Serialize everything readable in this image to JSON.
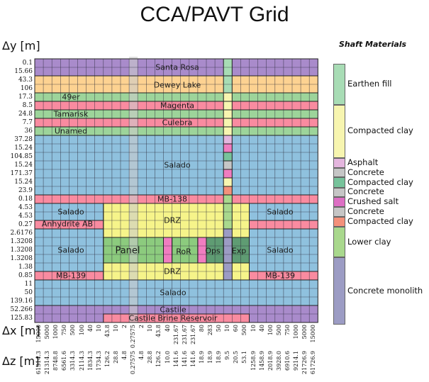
{
  "title": "CCA/PAVT Grid",
  "axes": {
    "dy_label": "Δy [m]",
    "dx_label": "Δx [m]",
    "dz_label": "Δz [m]"
  },
  "colors": {
    "santa_rosa": "#a98bcb",
    "dewey_lake": "#fdd291",
    "green_unit": "#9dd49a",
    "red_unit": "#f98ba0",
    "salado": "#8fc1de",
    "drz": "#f6f48a",
    "panel": "#8ccb7e",
    "ops_exp": "#5f9c73",
    "castile": "#a98bcb",
    "brine": "#f98ba0",
    "panel_shaft": "#cccccc",
    "pink_pillar": "#f07dc0",
    "grid_line": "#2b2b3a"
  },
  "chart_data": {
    "type": "table",
    "title": "CCA/PAVT Grid",
    "row_dy_m": [
      "0.1",
      "15.66",
      "43.3",
      "106",
      "17.3",
      "8.5",
      "24.8",
      "7.7",
      "36",
      "37.28",
      "15.24",
      "104.85",
      "15.24",
      "171.37",
      "15.24",
      "23.9",
      "0.18",
      "4.53",
      "4.53",
      "0.27",
      "2.6176",
      "1.3208",
      "1.3208",
      "1.3208",
      "1.38",
      "0.85",
      "11",
      "50",
      "139.16",
      "52.266",
      "125.83"
    ],
    "col_dx_m": [
      "15000",
      "5000",
      "1000",
      "750",
      "500",
      "100",
      "40",
      "10",
      "43.8",
      "10",
      "2",
      "0.27575",
      "2",
      "10",
      "43.8",
      "40",
      "231.67",
      "231.67",
      "231.67",
      "80",
      "283",
      "50",
      "10",
      "60",
      "500",
      "10",
      "40",
      "100",
      "500",
      "750",
      "1000",
      "5000",
      "15000"
    ],
    "col_dz_m": [
      "61314.3",
      "21314.3",
      "8748.8",
      "6561.6",
      "3314.3",
      "2114.3",
      "1834.3",
      "1734.3",
      "126.2",
      "28.8",
      "4.8",
      "0.27575",
      "4.8",
      "28.8",
      "126.2",
      "10.0",
      "141.6",
      "141.6",
      "141.6",
      "18.9",
      "18.9",
      "18.9",
      "9.5",
      "20.5",
      "53.1",
      "1258.9",
      "1458.9",
      "2018.9",
      "3928.0",
      "6910.6",
      "9214.1",
      "21726.9",
      "61726.9"
    ],
    "regions": [
      {
        "name": "Santa Rosa",
        "rows": [
          0,
          1
        ],
        "cols": [
          0,
          32
        ],
        "color_key": "santa_rosa"
      },
      {
        "name": "Dewey Lake",
        "rows": [
          2,
          3
        ],
        "cols": [
          0,
          32
        ],
        "color_key": "dewey_lake"
      },
      {
        "name": "49er",
        "rows": [
          4,
          4
        ],
        "cols": [
          0,
          32
        ],
        "color_key": "green_unit"
      },
      {
        "name": "Magenta",
        "rows": [
          5,
          5
        ],
        "cols": [
          0,
          32
        ],
        "color_key": "red_unit"
      },
      {
        "name": "Tamarisk",
        "rows": [
          6,
          6
        ],
        "cols": [
          0,
          32
        ],
        "color_key": "green_unit"
      },
      {
        "name": "Culebra",
        "rows": [
          7,
          7
        ],
        "cols": [
          0,
          32
        ],
        "color_key": "red_unit"
      },
      {
        "name": "Unamed",
        "rows": [
          8,
          8
        ],
        "cols": [
          0,
          32
        ],
        "color_key": "green_unit"
      },
      {
        "name": "Salado",
        "rows": [
          9,
          15
        ],
        "cols": [
          0,
          32
        ],
        "color_key": "salado"
      },
      {
        "name": "MB-138",
        "rows": [
          16,
          16
        ],
        "cols": [
          0,
          32
        ],
        "color_key": "red_unit"
      },
      {
        "name": "Salado",
        "rows": [
          17,
          18
        ],
        "cols": [
          0,
          7
        ],
        "color_key": "salado"
      },
      {
        "name": "Anhydrite AB",
        "rows": [
          19,
          19
        ],
        "cols": [
          0,
          7
        ],
        "color_key": "red_unit"
      },
      {
        "name": "Salado",
        "rows": [
          20,
          24
        ],
        "cols": [
          0,
          7
        ],
        "color_key": "salado"
      },
      {
        "name": "MB-139",
        "rows": [
          25,
          25
        ],
        "cols": [
          0,
          7
        ],
        "color_key": "red_unit"
      },
      {
        "name": "Salado",
        "rows": [
          17,
          18
        ],
        "cols": [
          25,
          32
        ],
        "color_key": "salado"
      },
      {
        "name": "",
        "rows": [
          19,
          19
        ],
        "cols": [
          25,
          32
        ],
        "color_key": "red_unit"
      },
      {
        "name": "Salado",
        "rows": [
          20,
          24
        ],
        "cols": [
          25,
          32
        ],
        "color_key": "salado"
      },
      {
        "name": "MB-139",
        "rows": [
          25,
          25
        ],
        "cols": [
          25,
          32
        ],
        "color_key": "red_unit"
      },
      {
        "name": "DRZ",
        "rows": [
          17,
          20
        ],
        "cols": [
          8,
          24
        ],
        "color_key": "drz"
      },
      {
        "name": "Panel",
        "rows": [
          21,
          23
        ],
        "cols": [
          8,
          14
        ],
        "color_key": "panel"
      },
      {
        "name": "",
        "rows": [
          21,
          23
        ],
        "cols": [
          15,
          15
        ],
        "color_key": "pink_pillar"
      },
      {
        "name": "RoR",
        "rows": [
          21,
          23
        ],
        "cols": [
          16,
          18
        ],
        "color_key": "panel"
      },
      {
        "name": "",
        "rows": [
          21,
          23
        ],
        "cols": [
          19,
          19
        ],
        "color_key": "pink_pillar"
      },
      {
        "name": "Ops",
        "rows": [
          21,
          23
        ],
        "cols": [
          20,
          21
        ],
        "color_key": "ops_exp"
      },
      {
        "name": "Exp",
        "rows": [
          21,
          23
        ],
        "cols": [
          23,
          24
        ],
        "color_key": "ops_exp"
      },
      {
        "name": "DRZ",
        "rows": [
          24,
          25
        ],
        "cols": [
          8,
          24
        ],
        "color_key": "drz"
      },
      {
        "name": "Salado",
        "rows": [
          26,
          28
        ],
        "cols": [
          0,
          32
        ],
        "color_key": "salado"
      },
      {
        "name": "Castile",
        "rows": [
          29,
          30
        ],
        "cols": [
          0,
          32
        ],
        "color_key": "castile"
      },
      {
        "name": "Castile Brine Reservoir",
        "rows": [
          30,
          30
        ],
        "cols": [
          8,
          24
        ],
        "color_key": "brine"
      }
    ],
    "shaft": {
      "col": 22,
      "cells": [
        {
          "rows": [
            0,
            3
          ],
          "material": "Earthen fill"
        },
        {
          "rows": [
            4,
            8
          ],
          "material": "Compacted clay"
        },
        {
          "rows": [
            9,
            9
          ],
          "material": "Asphalt"
        },
        {
          "rows": [
            10,
            10
          ],
          "material": "Crushed salt"
        },
        {
          "rows": [
            11,
            11
          ],
          "material": "Compacted clay (green)"
        },
        {
          "rows": [
            12,
            12
          ],
          "material": "Concrete"
        },
        {
          "rows": [
            13,
            13
          ],
          "material": "Crushed salt"
        },
        {
          "rows": [
            14,
            14
          ],
          "material": "Compacted clay"
        },
        {
          "rows": [
            15,
            15
          ],
          "material": "Compacted clay (lower)"
        },
        {
          "rows": [
            16,
            19
          ],
          "material": "Lower clay"
        },
        {
          "rows": [
            20,
            25
          ],
          "material": "Concrete monolith"
        }
      ]
    },
    "panel_shaft_col": 11
  },
  "legend": {
    "title": "Shaft Materials",
    "items": [
      {
        "label": "Earthen fill",
        "color": "#a8dcb5",
        "span": 0.22
      },
      {
        "label": "Compacted clay",
        "color": "#f7f5b0",
        "span": 0.285
      },
      {
        "label": "Asphalt",
        "color": "#e4b6de",
        "span": 0.055
      },
      {
        "label": "Concrete",
        "color": "#c6c6c6",
        "span": 0.05
      },
      {
        "label": "Compacted clay",
        "color": "#77c39b",
        "span": 0.055
      },
      {
        "label": "Concrete",
        "color": "#c6c6c6",
        "span": 0.05
      },
      {
        "label": "Crushed salt",
        "color": "#dd6fc4",
        "span": 0.055
      },
      {
        "label": "Concrete",
        "color": "#c6c6c6",
        "span": 0.05
      },
      {
        "label": "Compacted clay",
        "color": "#f4917b",
        "span": 0.055
      },
      {
        "label": "Lower clay",
        "color": "#a9d88d",
        "span": 0.165
      },
      {
        "label": "Concrete monolith",
        "color": "#9c9cc4",
        "span": 0.36
      }
    ]
  },
  "shaft_colors": {
    "Earthen fill": "#a8dcb5",
    "Compacted clay": "#f7f5b0",
    "Asphalt": "#e4b6de",
    "Crushed salt": "#f07dc0",
    "Compacted clay (green)": "#77c39b",
    "Concrete": "#c6c6c6",
    "Compacted clay (lower)": "#f4917b",
    "Lower clay": "#a9d88d",
    "Concrete monolith": "#9c9cc4"
  }
}
